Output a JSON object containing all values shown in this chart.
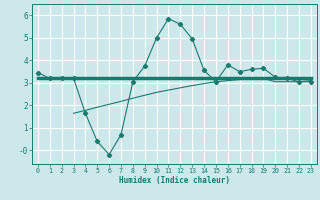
{
  "bg_color": "#cce8ea",
  "grid_color": "#ffffff",
  "line_color": "#1a7a6e",
  "xlabel": "Humidex (Indice chaleur)",
  "xlim": [
    -0.5,
    23.5
  ],
  "ylim": [
    -0.6,
    6.5
  ],
  "yticks": [
    0,
    1,
    2,
    3,
    4,
    5,
    6
  ],
  "ytick_labels": [
    "-0",
    "1",
    "2",
    "3",
    "4",
    "5",
    "6"
  ],
  "xticks": [
    0,
    1,
    2,
    3,
    4,
    5,
    6,
    7,
    8,
    9,
    10,
    11,
    12,
    13,
    14,
    15,
    16,
    17,
    18,
    19,
    20,
    21,
    22,
    23
  ],
  "line1_x": [
    0,
    1,
    2,
    3,
    4,
    5,
    6,
    7,
    8,
    9,
    10,
    11,
    12,
    13,
    14,
    15,
    16,
    17,
    18,
    19,
    20,
    21,
    22,
    23
  ],
  "line1_y": [
    3.45,
    3.2,
    3.2,
    3.2,
    1.65,
    0.4,
    -0.18,
    0.7,
    3.05,
    3.75,
    5.0,
    5.85,
    5.6,
    4.95,
    3.55,
    3.05,
    3.8,
    3.5,
    3.6,
    3.65,
    3.25,
    3.2,
    3.05,
    3.05
  ],
  "line2_x": [
    0,
    23
  ],
  "line2_y": [
    3.2,
    3.2
  ],
  "line3_x": [
    3,
    4,
    5,
    6,
    7,
    8,
    9,
    10,
    11,
    12,
    13,
    14,
    15,
    16,
    17,
    18,
    19,
    20,
    21,
    22,
    23
  ],
  "line3_y": [
    1.65,
    1.78,
    1.92,
    2.05,
    2.18,
    2.32,
    2.45,
    2.58,
    2.68,
    2.78,
    2.88,
    2.97,
    3.05,
    3.1,
    3.15,
    3.18,
    3.2,
    3.05,
    3.05,
    3.05,
    3.1
  ]
}
